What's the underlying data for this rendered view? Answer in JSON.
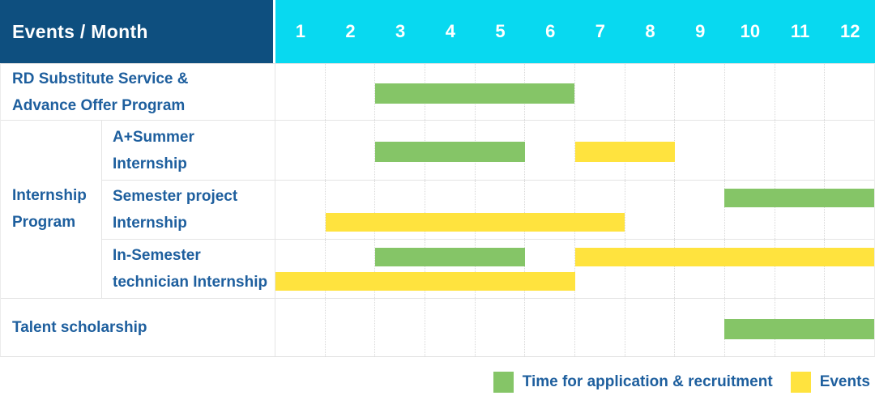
{
  "header": {
    "title": "Events / Month",
    "months": [
      "1",
      "2",
      "3",
      "4",
      "5",
      "6",
      "7",
      "8",
      "9",
      "10",
      "11",
      "12"
    ]
  },
  "colors": {
    "header_bg": "#0E4F7F",
    "months_bg": "#08D9F0",
    "label_text": "#1E5F9E",
    "application": "#85C567",
    "event": "#FFE33E",
    "grid": "#E4E4E4"
  },
  "legend": [
    {
      "label": "Time for application & recruitment",
      "kind": "application"
    },
    {
      "label": "Events",
      "kind": "event"
    }
  ],
  "chart_data": {
    "type": "gantt",
    "x_axis": "month",
    "x_range": [
      1,
      12
    ],
    "bar_kinds": {
      "application": "Time for application & recruitment",
      "event": "Events"
    },
    "group_label": "Internship\nProgram",
    "rows": [
      {
        "group": null,
        "label": "RD Substitute Service &\nAdvance Offer Program",
        "levels": [
          [
            {
              "kind": "application",
              "start": 3,
              "end": 6
            }
          ]
        ]
      },
      {
        "group": "Internship\nProgram",
        "label": "A+Summer\nInternship",
        "levels": [
          [
            {
              "kind": "application",
              "start": 3,
              "end": 5
            },
            {
              "kind": "event",
              "start": 7,
              "end": 8
            }
          ]
        ]
      },
      {
        "group": "Internship\nProgram",
        "label": "Semester project\nInternship",
        "levels": [
          [
            {
              "kind": "application",
              "start": 10,
              "end": 12
            }
          ],
          [
            {
              "kind": "event",
              "start": 2,
              "end": 7
            }
          ]
        ]
      },
      {
        "group": "Internship\nProgram",
        "label": "In-Semester\ntechnician Internship",
        "levels": [
          [
            {
              "kind": "application",
              "start": 3,
              "end": 5
            },
            {
              "kind": "event",
              "start": 7,
              "end": 12
            }
          ],
          [
            {
              "kind": "event",
              "start": 1,
              "end": 6
            }
          ]
        ]
      },
      {
        "group": null,
        "label": "Talent scholarship",
        "levels": [
          [
            {
              "kind": "application",
              "start": 10,
              "end": 12
            }
          ]
        ]
      }
    ]
  }
}
